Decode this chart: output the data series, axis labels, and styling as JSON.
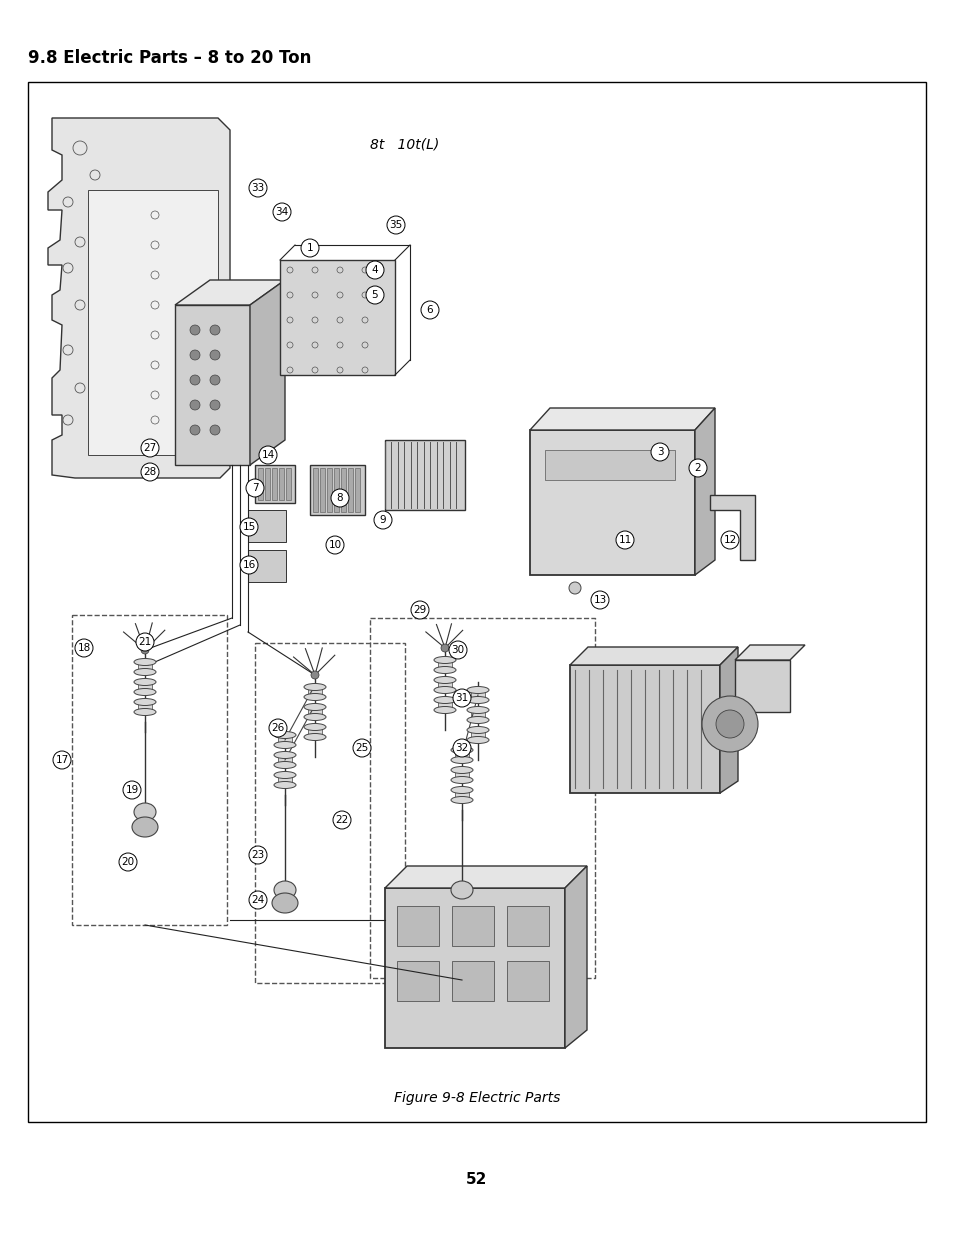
{
  "title": "9.8 Electric Parts – 8 to 20 Ton",
  "figure_caption": "Figure 9-8 Electric Parts",
  "page_number": "52",
  "bg": "#ffffff",
  "border": "#000000",
  "tc": "#000000",
  "diagram_label": "8t   10t(L)",
  "title_fs": 12,
  "caption_fs": 10,
  "page_fs": 11,
  "label_fs": 10
}
